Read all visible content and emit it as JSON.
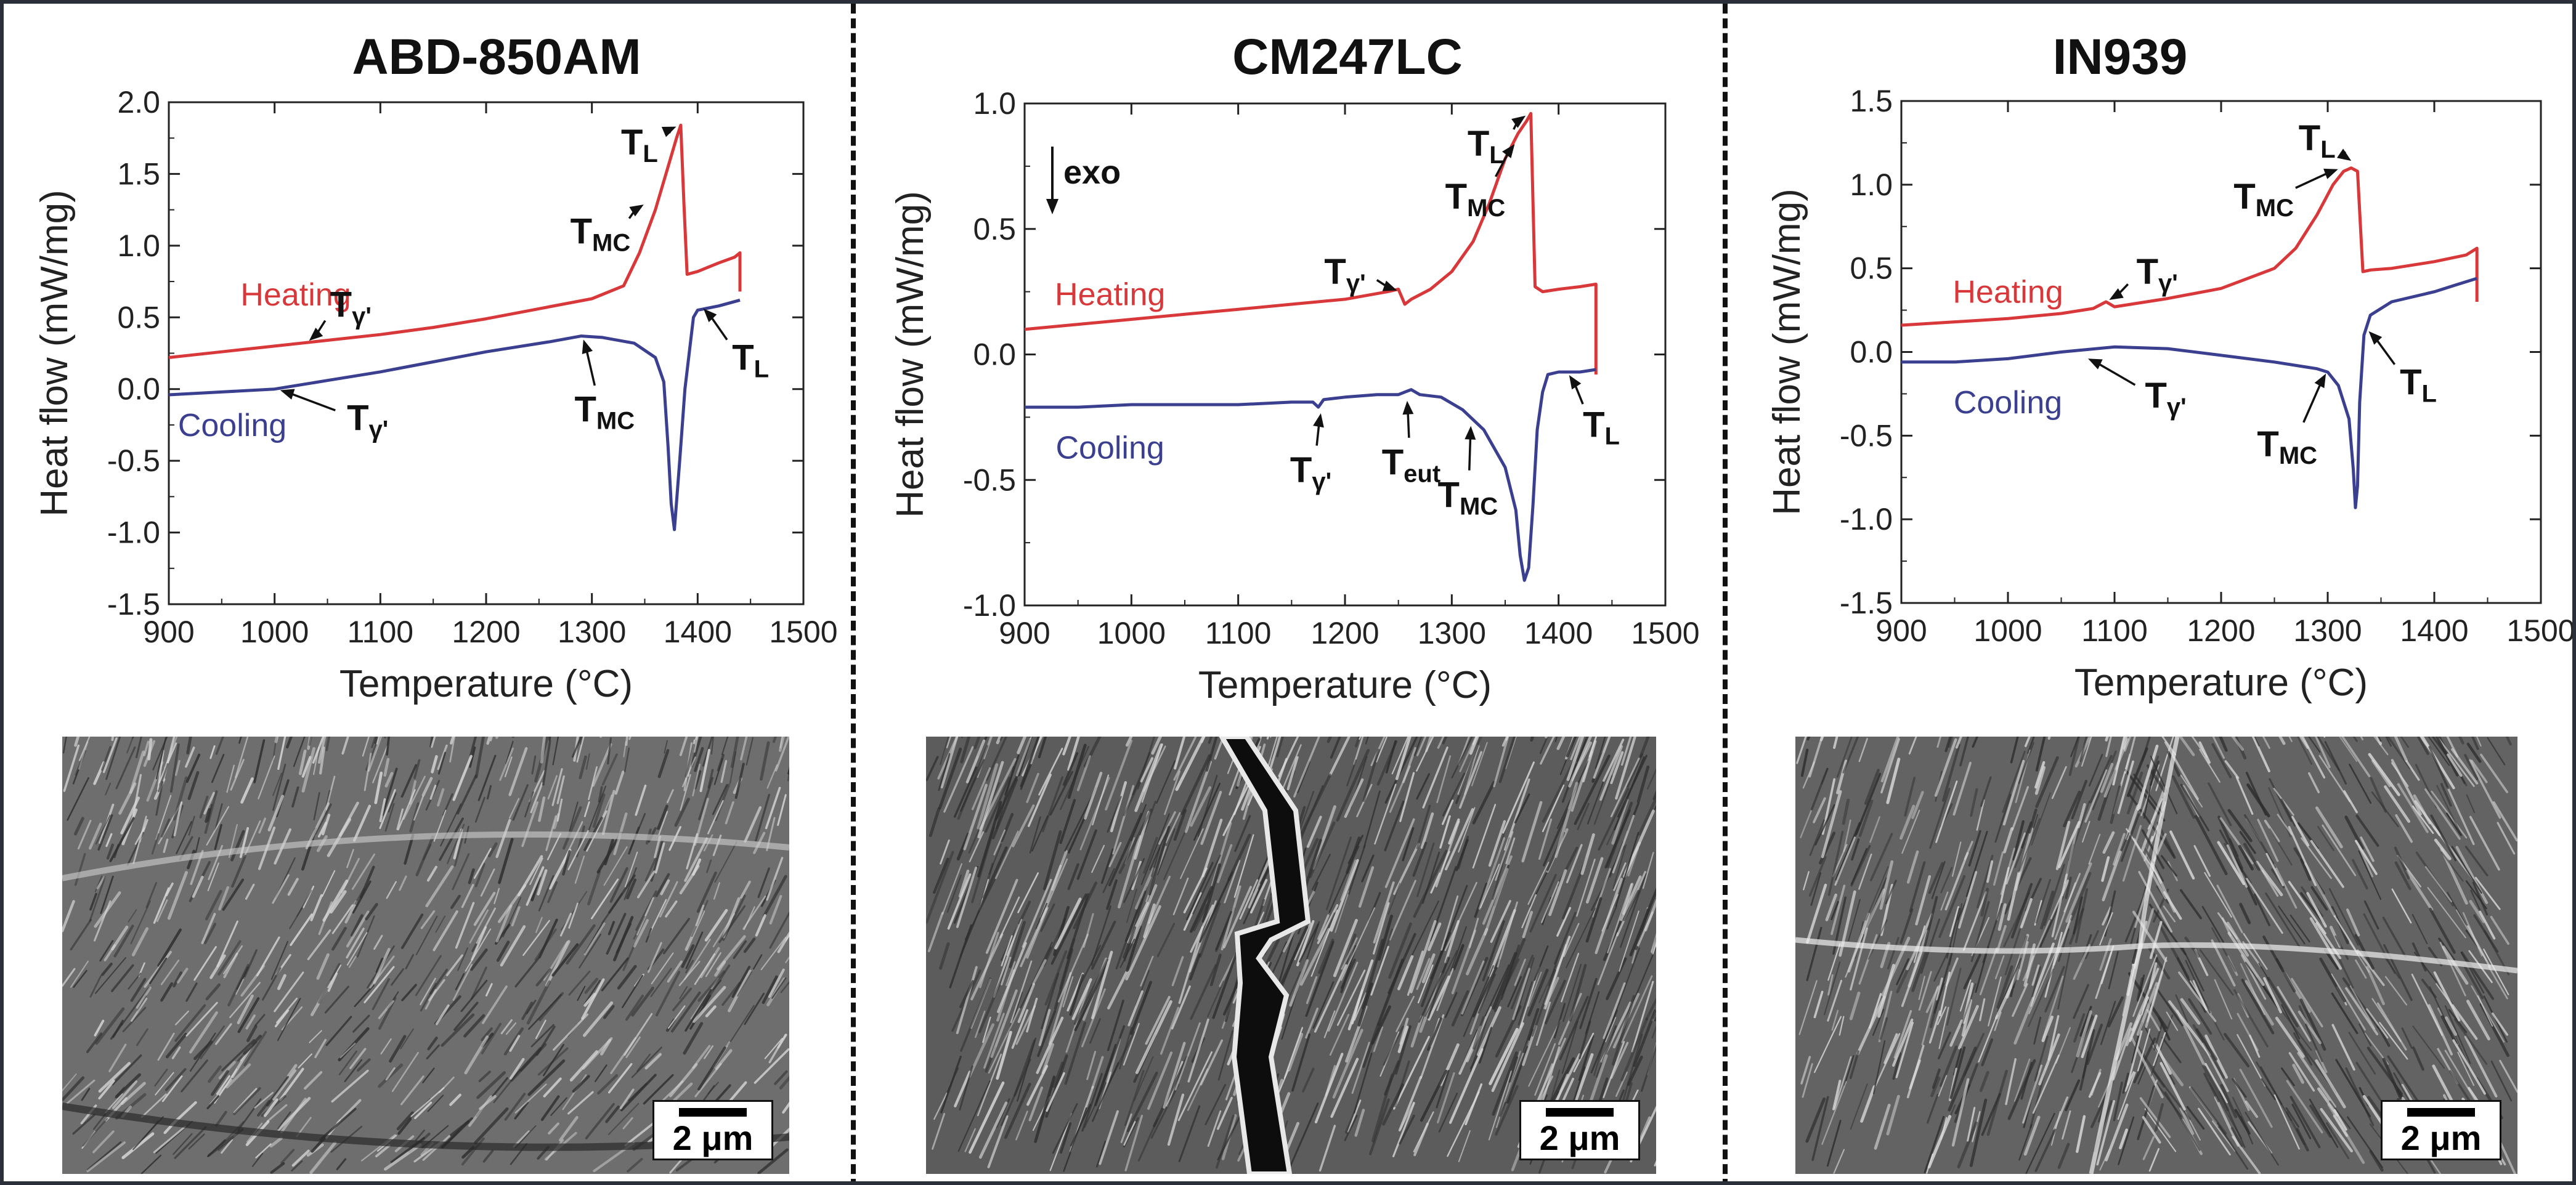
{
  "chart_data": [
    {
      "type": "line",
      "title": "ABD-850AM",
      "xlabel": "Temperature (°C)",
      "ylabel": "Heat flow (mW/mg)",
      "xlim": [
        900,
        1500
      ],
      "ylim": [
        -1.5,
        2.0
      ],
      "xticks": [
        900,
        1000,
        1100,
        1200,
        1300,
        1400,
        1500
      ],
      "yticks": [
        -1.5,
        -1.0,
        -0.5,
        0.0,
        0.5,
        1.0,
        1.5,
        2.0
      ],
      "xtick_labels": [
        "900",
        "1000",
        "1100",
        "1200",
        "1300",
        "1400",
        "1500"
      ],
      "ytick_labels": [
        "-1.5",
        "-1.0",
        "-0.5",
        "0.0",
        "0.5",
        "1.0",
        "1.5",
        "2.0"
      ],
      "exo_label": "",
      "series": [
        {
          "name": "Heating",
          "color": "#d9383a",
          "x": [
            900,
            950,
            1000,
            1050,
            1100,
            1150,
            1200,
            1250,
            1300,
            1330,
            1345,
            1360,
            1372,
            1380,
            1384,
            1387,
            1390,
            1400,
            1420,
            1435,
            1440,
            1440
          ],
          "y": [
            0.22,
            0.26,
            0.3,
            0.34,
            0.38,
            0.43,
            0.49,
            0.56,
            0.63,
            0.72,
            0.95,
            1.25,
            1.55,
            1.75,
            1.84,
            1.3,
            0.8,
            0.82,
            0.88,
            0.92,
            0.95,
            0.68
          ]
        },
        {
          "name": "Cooling",
          "color": "#3b3f8f",
          "x": [
            1440,
            1420,
            1400,
            1396,
            1388,
            1383,
            1378,
            1375,
            1372,
            1368,
            1360,
            1340,
            1310,
            1290,
            1260,
            1200,
            1150,
            1100,
            1050,
            1000,
            950,
            900
          ],
          "y": [
            0.62,
            0.58,
            0.55,
            0.5,
            0.0,
            -0.5,
            -0.98,
            -0.8,
            -0.4,
            0.05,
            0.22,
            0.32,
            0.36,
            0.37,
            0.33,
            0.26,
            0.19,
            0.12,
            0.06,
            0.0,
            -0.02,
            -0.04
          ]
        }
      ],
      "annotations": [
        {
          "base": "T",
          "sub": "L",
          "at": [
            1383,
            1.84
          ],
          "text": [
            1345,
            1.72
          ]
        },
        {
          "base": "T",
          "sub": "MC",
          "at": [
            1352,
            1.3
          ],
          "text": [
            1308,
            1.1
          ]
        },
        {
          "base": "T",
          "sub": "γ'",
          "at": [
            1030,
            0.32
          ],
          "text": [
            1072,
            0.59
          ]
        },
        {
          "base": "T",
          "sub": "L",
          "at": [
            1403,
            0.58
          ],
          "text": [
            1450,
            0.22
          ]
        },
        {
          "base": "T",
          "sub": "γ'",
          "at": [
            1002,
            0.0
          ],
          "text": [
            1088,
            -0.2
          ]
        },
        {
          "base": "T",
          "sub": "MC",
          "at": [
            1291,
            0.37
          ],
          "text": [
            1312,
            -0.14
          ]
        }
      ],
      "series_labels": [
        {
          "text": "Heating",
          "at": [
            1020,
            0.66
          ]
        },
        {
          "text": "Cooling",
          "at": [
            960,
            -0.25
          ]
        }
      ]
    },
    {
      "type": "line",
      "title": "CM247LC",
      "xlabel": "Temperature (°C)",
      "ylabel": "Heat flow (mW/mg)",
      "xlim": [
        900,
        1500
      ],
      "ylim": [
        -1.0,
        1.0
      ],
      "xticks": [
        900,
        1000,
        1100,
        1200,
        1300,
        1400,
        1500
      ],
      "yticks": [
        -1.0,
        -0.5,
        0.0,
        0.5,
        1.0
      ],
      "xtick_labels": [
        "900",
        "1000",
        "1100",
        "1200",
        "1300",
        "1400",
        "1500"
      ],
      "ytick_labels": [
        "-1.0",
        "-0.5",
        "0.0",
        "0.5",
        "1.0"
      ],
      "exo_label": "exo",
      "series": [
        {
          "name": "Heating",
          "color": "#d9383a",
          "x": [
            900,
            950,
            1000,
            1050,
            1100,
            1150,
            1200,
            1240,
            1250,
            1256,
            1262,
            1280,
            1300,
            1320,
            1335,
            1350,
            1362,
            1370,
            1374,
            1378,
            1385,
            1400,
            1420,
            1435,
            1435
          ],
          "y": [
            0.1,
            0.12,
            0.14,
            0.16,
            0.18,
            0.2,
            0.22,
            0.25,
            0.26,
            0.2,
            0.22,
            0.26,
            0.33,
            0.45,
            0.6,
            0.78,
            0.88,
            0.93,
            0.96,
            0.27,
            0.25,
            0.26,
            0.27,
            0.28,
            -0.08
          ]
        },
        {
          "name": "Cooling",
          "color": "#3b3f8f",
          "x": [
            1435,
            1420,
            1400,
            1390,
            1385,
            1380,
            1376,
            1372,
            1368,
            1364,
            1360,
            1350,
            1330,
            1310,
            1290,
            1270,
            1262,
            1256,
            1250,
            1230,
            1200,
            1180,
            1175,
            1170,
            1150,
            1100,
            1050,
            1000,
            950,
            900
          ],
          "y": [
            -0.06,
            -0.07,
            -0.07,
            -0.08,
            -0.15,
            -0.3,
            -0.6,
            -0.85,
            -0.9,
            -0.8,
            -0.62,
            -0.45,
            -0.3,
            -0.22,
            -0.17,
            -0.16,
            -0.14,
            -0.15,
            -0.16,
            -0.16,
            -0.17,
            -0.18,
            -0.21,
            -0.19,
            -0.19,
            -0.2,
            -0.2,
            -0.2,
            -0.21,
            -0.21
          ]
        }
      ],
      "annotations": [
        {
          "base": "T",
          "sub": "L",
          "at": [
            1372,
            0.96
          ],
          "text": [
            1332,
            0.84
          ]
        },
        {
          "base": "T",
          "sub": "MC",
          "at": [
            1361,
            0.85
          ],
          "text": [
            1322,
            0.63
          ]
        },
        {
          "base": "T",
          "sub": "γ'",
          "at": [
            1252,
            0.25
          ],
          "text": [
            1200,
            0.33
          ]
        },
        {
          "base": "T",
          "sub": "L",
          "at": [
            1408,
            -0.07
          ],
          "text": [
            1440,
            -0.28
          ]
        },
        {
          "base": "T",
          "sub": "γ'",
          "at": [
            1178,
            -0.22
          ],
          "text": [
            1168,
            -0.46
          ]
        },
        {
          "base": "T",
          "sub": "eut",
          "at": [
            1258,
            -0.17
          ],
          "text": [
            1262,
            -0.43
          ]
        },
        {
          "base": "T",
          "sub": "MC",
          "at": [
            1318,
            -0.27
          ],
          "text": [
            1315,
            -0.56
          ]
        }
      ],
      "series_labels": [
        {
          "text": "Heating",
          "at": [
            980,
            0.24
          ]
        },
        {
          "text": "Cooling",
          "at": [
            980,
            -0.37
          ]
        }
      ]
    },
    {
      "type": "line",
      "title": "IN939",
      "xlabel": "Temperature (°C)",
      "ylabel": "Heat flow (mW/mg)",
      "xlim": [
        900,
        1500
      ],
      "ylim": [
        -1.5,
        1.5
      ],
      "xticks": [
        900,
        1000,
        1100,
        1200,
        1300,
        1400,
        1500
      ],
      "yticks": [
        -1.5,
        -1.0,
        -0.5,
        0.0,
        0.5,
        1.0,
        1.5
      ],
      "xtick_labels": [
        "900",
        "1000",
        "1100",
        "1200",
        "1300",
        "1400",
        "1500"
      ],
      "ytick_labels": [
        "-1.5",
        "-1.0",
        "-0.5",
        "0.0",
        "0.5",
        "1.0",
        "1.5"
      ],
      "exo_label": "",
      "series": [
        {
          "name": "Heating",
          "color": "#d9383a",
          "x": [
            900,
            950,
            1000,
            1050,
            1080,
            1092,
            1100,
            1150,
            1200,
            1250,
            1270,
            1290,
            1305,
            1315,
            1322,
            1328,
            1333,
            1340,
            1360,
            1400,
            1430,
            1440,
            1440
          ],
          "y": [
            0.16,
            0.18,
            0.2,
            0.23,
            0.26,
            0.3,
            0.27,
            0.32,
            0.38,
            0.5,
            0.62,
            0.82,
            1.0,
            1.08,
            1.1,
            1.08,
            0.48,
            0.49,
            0.5,
            0.54,
            0.58,
            0.62,
            0.3
          ]
        },
        {
          "name": "Cooling",
          "color": "#3b3f8f",
          "x": [
            1440,
            1420,
            1400,
            1360,
            1340,
            1334,
            1330,
            1328,
            1326,
            1324,
            1320,
            1310,
            1300,
            1290,
            1280,
            1250,
            1200,
            1150,
            1100,
            1050,
            1000,
            950,
            900
          ],
          "y": [
            0.44,
            0.4,
            0.36,
            0.3,
            0.22,
            0.1,
            -0.3,
            -0.8,
            -0.93,
            -0.7,
            -0.4,
            -0.2,
            -0.12,
            -0.1,
            -0.09,
            -0.06,
            -0.02,
            0.02,
            0.03,
            0.0,
            -0.04,
            -0.06,
            -0.06
          ]
        }
      ],
      "annotations": [
        {
          "base": "T",
          "sub": "L",
          "at": [
            1325,
            1.13
          ],
          "text": [
            1290,
            1.28
          ]
        },
        {
          "base": "T",
          "sub": "MC",
          "at": [
            1313,
            1.1
          ],
          "text": [
            1240,
            0.93
          ]
        },
        {
          "base": "T",
          "sub": "γ'",
          "at": [
            1092,
            0.3
          ],
          "text": [
            1140,
            0.48
          ]
        },
        {
          "base": "T",
          "sub": "L",
          "at": [
            1336,
            0.14
          ],
          "text": [
            1385,
            -0.18
          ]
        },
        {
          "base": "T",
          "sub": "γ'",
          "at": [
            1072,
            -0.03
          ],
          "text": [
            1148,
            -0.26
          ]
        },
        {
          "base": "T",
          "sub": "MC",
          "at": [
            1300,
            -0.11
          ],
          "text": [
            1262,
            -0.55
          ]
        }
      ],
      "series_labels": [
        {
          "text": "Heating",
          "at": [
            1000,
            0.36
          ]
        },
        {
          "text": "Cooling",
          "at": [
            1000,
            -0.3
          ]
        }
      ]
    }
  ],
  "micrographs": [
    {
      "scale_label": "2 μm"
    },
    {
      "scale_label": "2 μm"
    },
    {
      "scale_label": "2 μm"
    }
  ]
}
